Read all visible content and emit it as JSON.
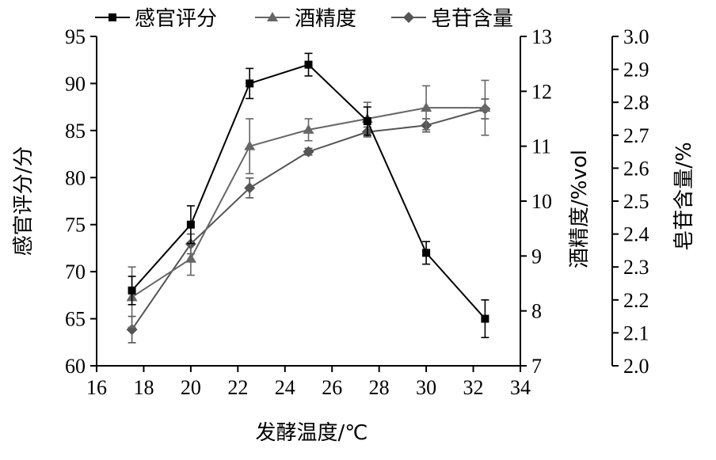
{
  "chart_data": {
    "type": "line",
    "title": "",
    "xlabel": "发酵温度/℃",
    "xlim": [
      16,
      34
    ],
    "xticks": [
      "16",
      "18",
      "20",
      "22",
      "24",
      "26",
      "28",
      "30",
      "32",
      "34"
    ],
    "x": [
      17.5,
      20,
      22.5,
      25,
      27.5,
      30,
      32.5
    ],
    "grid": false,
    "legend_position": "top",
    "axes": [
      {
        "id": "left",
        "label": "感官评分/分",
        "lim": [
          60,
          95
        ],
        "ticks": [
          "60",
          "65",
          "70",
          "75",
          "80",
          "85",
          "90",
          "95"
        ]
      },
      {
        "id": "right1",
        "label": "酒精度/%vol",
        "lim": [
          7,
          13
        ],
        "ticks": [
          "7",
          "8",
          "9",
          "10",
          "11",
          "12",
          "13"
        ]
      },
      {
        "id": "right2",
        "label": "皂苷含量/%",
        "lim": [
          2.0,
          3.0
        ],
        "ticks": [
          "2.0",
          "2.1",
          "2.2",
          "2.3",
          "2.4",
          "2.5",
          "2.6",
          "2.7",
          "2.8",
          "2.9",
          "3.0"
        ]
      }
    ],
    "series": [
      {
        "name": "感官评分",
        "axis": "left",
        "marker": "square",
        "color": "#000000",
        "values": [
          68,
          75,
          90,
          92,
          86,
          72,
          65
        ],
        "errors": [
          1.5,
          2.0,
          1.6,
          1.2,
          1.5,
          1.2,
          2.0
        ]
      },
      {
        "name": "酒精度",
        "axis": "right1",
        "marker": "triangle",
        "color": "#666666",
        "values": [
          8.25,
          8.95,
          11.0,
          11.3,
          11.5,
          11.7,
          11.7
        ],
        "errors": [
          0.55,
          0.3,
          0.5,
          0.2,
          0.3,
          0.4,
          0.5
        ]
      },
      {
        "name": "皂苷含量",
        "axis": "right2",
        "marker": "diamond",
        "color": "#555555",
        "values": [
          2.11,
          2.37,
          2.54,
          2.65,
          2.71,
          2.73,
          2.78
        ],
        "errors": [
          0.04,
          0.03,
          0.03,
          0.01,
          0.015,
          0.02,
          0.03
        ]
      }
    ]
  }
}
